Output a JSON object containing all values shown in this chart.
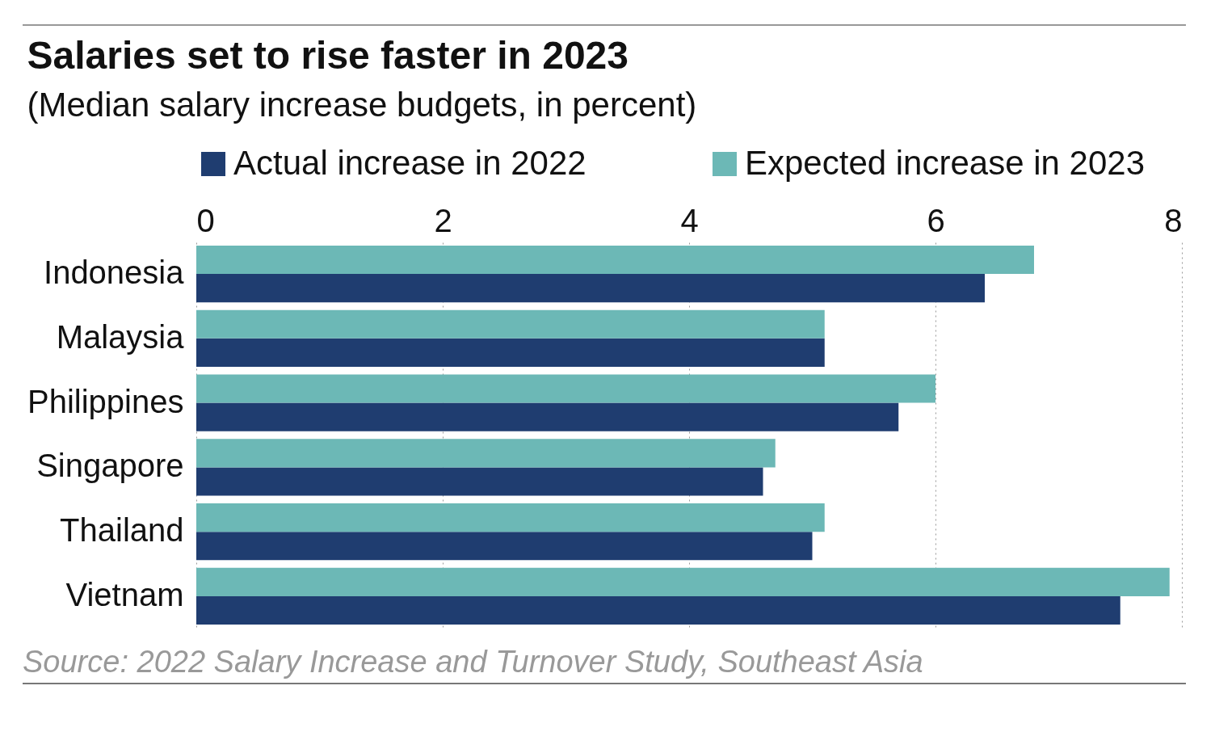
{
  "chart_data": {
    "type": "bar",
    "orientation": "horizontal",
    "title": "Salaries set to rise faster in 2023",
    "subtitle": "(Median salary increase budgets, in percent)",
    "categories": [
      "Indonesia",
      "Malaysia",
      "Philippines",
      "Singapore",
      "Thailand",
      "Vietnam"
    ],
    "series": [
      {
        "name": "Actual increase in 2022",
        "color": "#1f3d70",
        "values": [
          6.4,
          5.1,
          5.7,
          4.6,
          5.0,
          7.5
        ]
      },
      {
        "name": "Expected increase in 2023",
        "color": "#6cb8b6",
        "values": [
          6.8,
          5.1,
          6.0,
          4.7,
          5.1,
          7.9
        ]
      }
    ],
    "xlim": [
      0,
      8
    ],
    "xticks": [
      0,
      2,
      4,
      6,
      8
    ],
    "grid": "x",
    "legend": "top left",
    "annotations": [
      "Source: 2022 Salary Increase and Turnover Study, Southeast Asia"
    ]
  }
}
